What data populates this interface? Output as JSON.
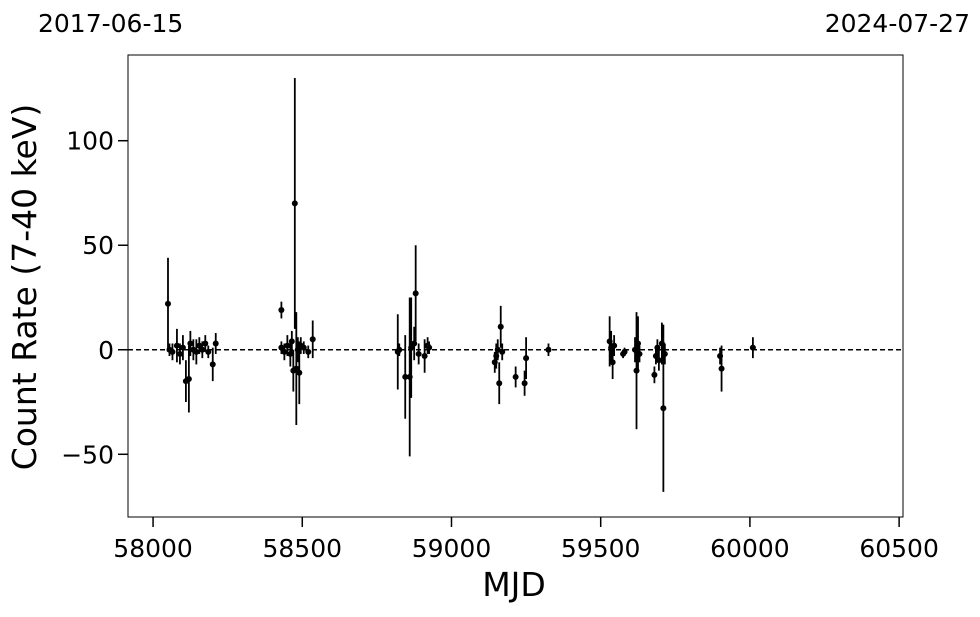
{
  "chart_data": {
    "type": "scatter",
    "top_labels": [
      "2017-06-15",
      "2024-07-27"
    ],
    "xlabel": "MJD",
    "ylabel": "Count Rate (7-40 keV)",
    "xlim": [
      57916,
      60513
    ],
    "ylim": [
      -80,
      141
    ],
    "xticks": [
      58000,
      58500,
      59000,
      59500,
      60000,
      60500
    ],
    "yticks": [
      {
        "value": -50,
        "label": "−50"
      },
      0,
      50,
      100
    ],
    "hline": 0,
    "series": [
      {
        "color": "#000000",
        "x": [
          58050,
          58055,
          58065,
          58080,
          58090,
          58100,
          58110,
          58120,
          58125,
          58135,
          58145,
          58155,
          58165,
          58175,
          58185,
          58200,
          58210,
          58430,
          58430,
          58440,
          58450,
          58460,
          58465,
          58470,
          58475,
          58480,
          58485,
          58490,
          58495,
          58505,
          58520,
          58535,
          58820,
          58825,
          58845,
          58860,
          58865,
          58875,
          58880,
          58890,
          58910,
          58920,
          58925,
          59145,
          59150,
          59155,
          59160,
          59165,
          59170,
          59215,
          59245,
          59250,
          59325,
          59530,
          59535,
          59540,
          59545,
          59575,
          59580,
          59615,
          59620,
          59625,
          59630,
          59680,
          59685,
          59690,
          59695,
          59705,
          59710,
          59715,
          59900,
          59905,
          60010
        ],
        "values": [
          22,
          0,
          -1,
          2,
          -2,
          1,
          -15,
          -14,
          3,
          0,
          -1,
          2,
          0,
          3,
          -1,
          -7,
          3,
          19,
          1,
          -1,
          2,
          -2,
          4,
          -10,
          70,
          -9,
          0,
          -11,
          2,
          1,
          -1,
          5,
          -1,
          0,
          -13,
          -13,
          1,
          3,
          27,
          -2,
          -3,
          2,
          1,
          -6,
          -3,
          0,
          -16,
          11,
          -1,
          -13,
          -16,
          -4,
          0,
          4,
          1,
          -6,
          2,
          -2,
          -1,
          0,
          -10,
          3,
          -2,
          -12,
          -3,
          1,
          -5,
          3,
          -28,
          -2,
          -3,
          -9,
          1
        ],
        "errors": [
          22,
          3,
          4,
          8,
          5,
          6,
          10,
          16,
          6,
          5,
          6,
          4,
          4,
          4,
          3,
          8,
          5,
          4,
          3,
          4,
          5,
          6,
          5,
          10,
          60,
          27,
          6,
          15,
          4,
          3,
          3,
          9,
          18,
          3,
          20,
          38,
          24,
          8,
          23,
          5,
          8,
          4,
          3,
          5,
          6,
          5,
          10,
          10,
          4,
          5,
          6,
          10,
          3,
          12,
          8,
          8,
          5,
          2,
          2,
          6,
          28,
          13,
          4,
          4,
          4,
          4,
          5,
          10,
          40,
          5,
          4,
          11,
          5
        ]
      }
    ]
  }
}
